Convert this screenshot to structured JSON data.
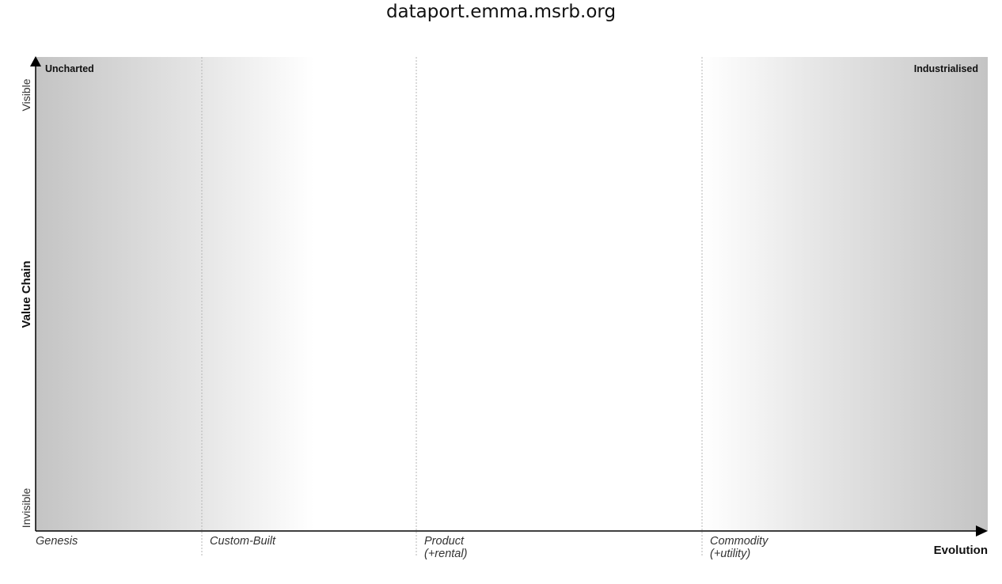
{
  "title": "dataport.emma.msrb.org",
  "map": {
    "corner_left": "Uncharted",
    "corner_right": "Industrialised",
    "y_axis": {
      "label": "Value Chain",
      "top": "Visible",
      "bottom": "Invisible"
    },
    "x_axis": {
      "label": "Evolution"
    },
    "stages": [
      {
        "line1": "Genesis",
        "line2": ""
      },
      {
        "line1": "Custom-Built",
        "line2": ""
      },
      {
        "line1": "Product",
        "line2": "(+rental)"
      },
      {
        "line1": "Commodity",
        "line2": "(+utility)"
      }
    ]
  }
}
